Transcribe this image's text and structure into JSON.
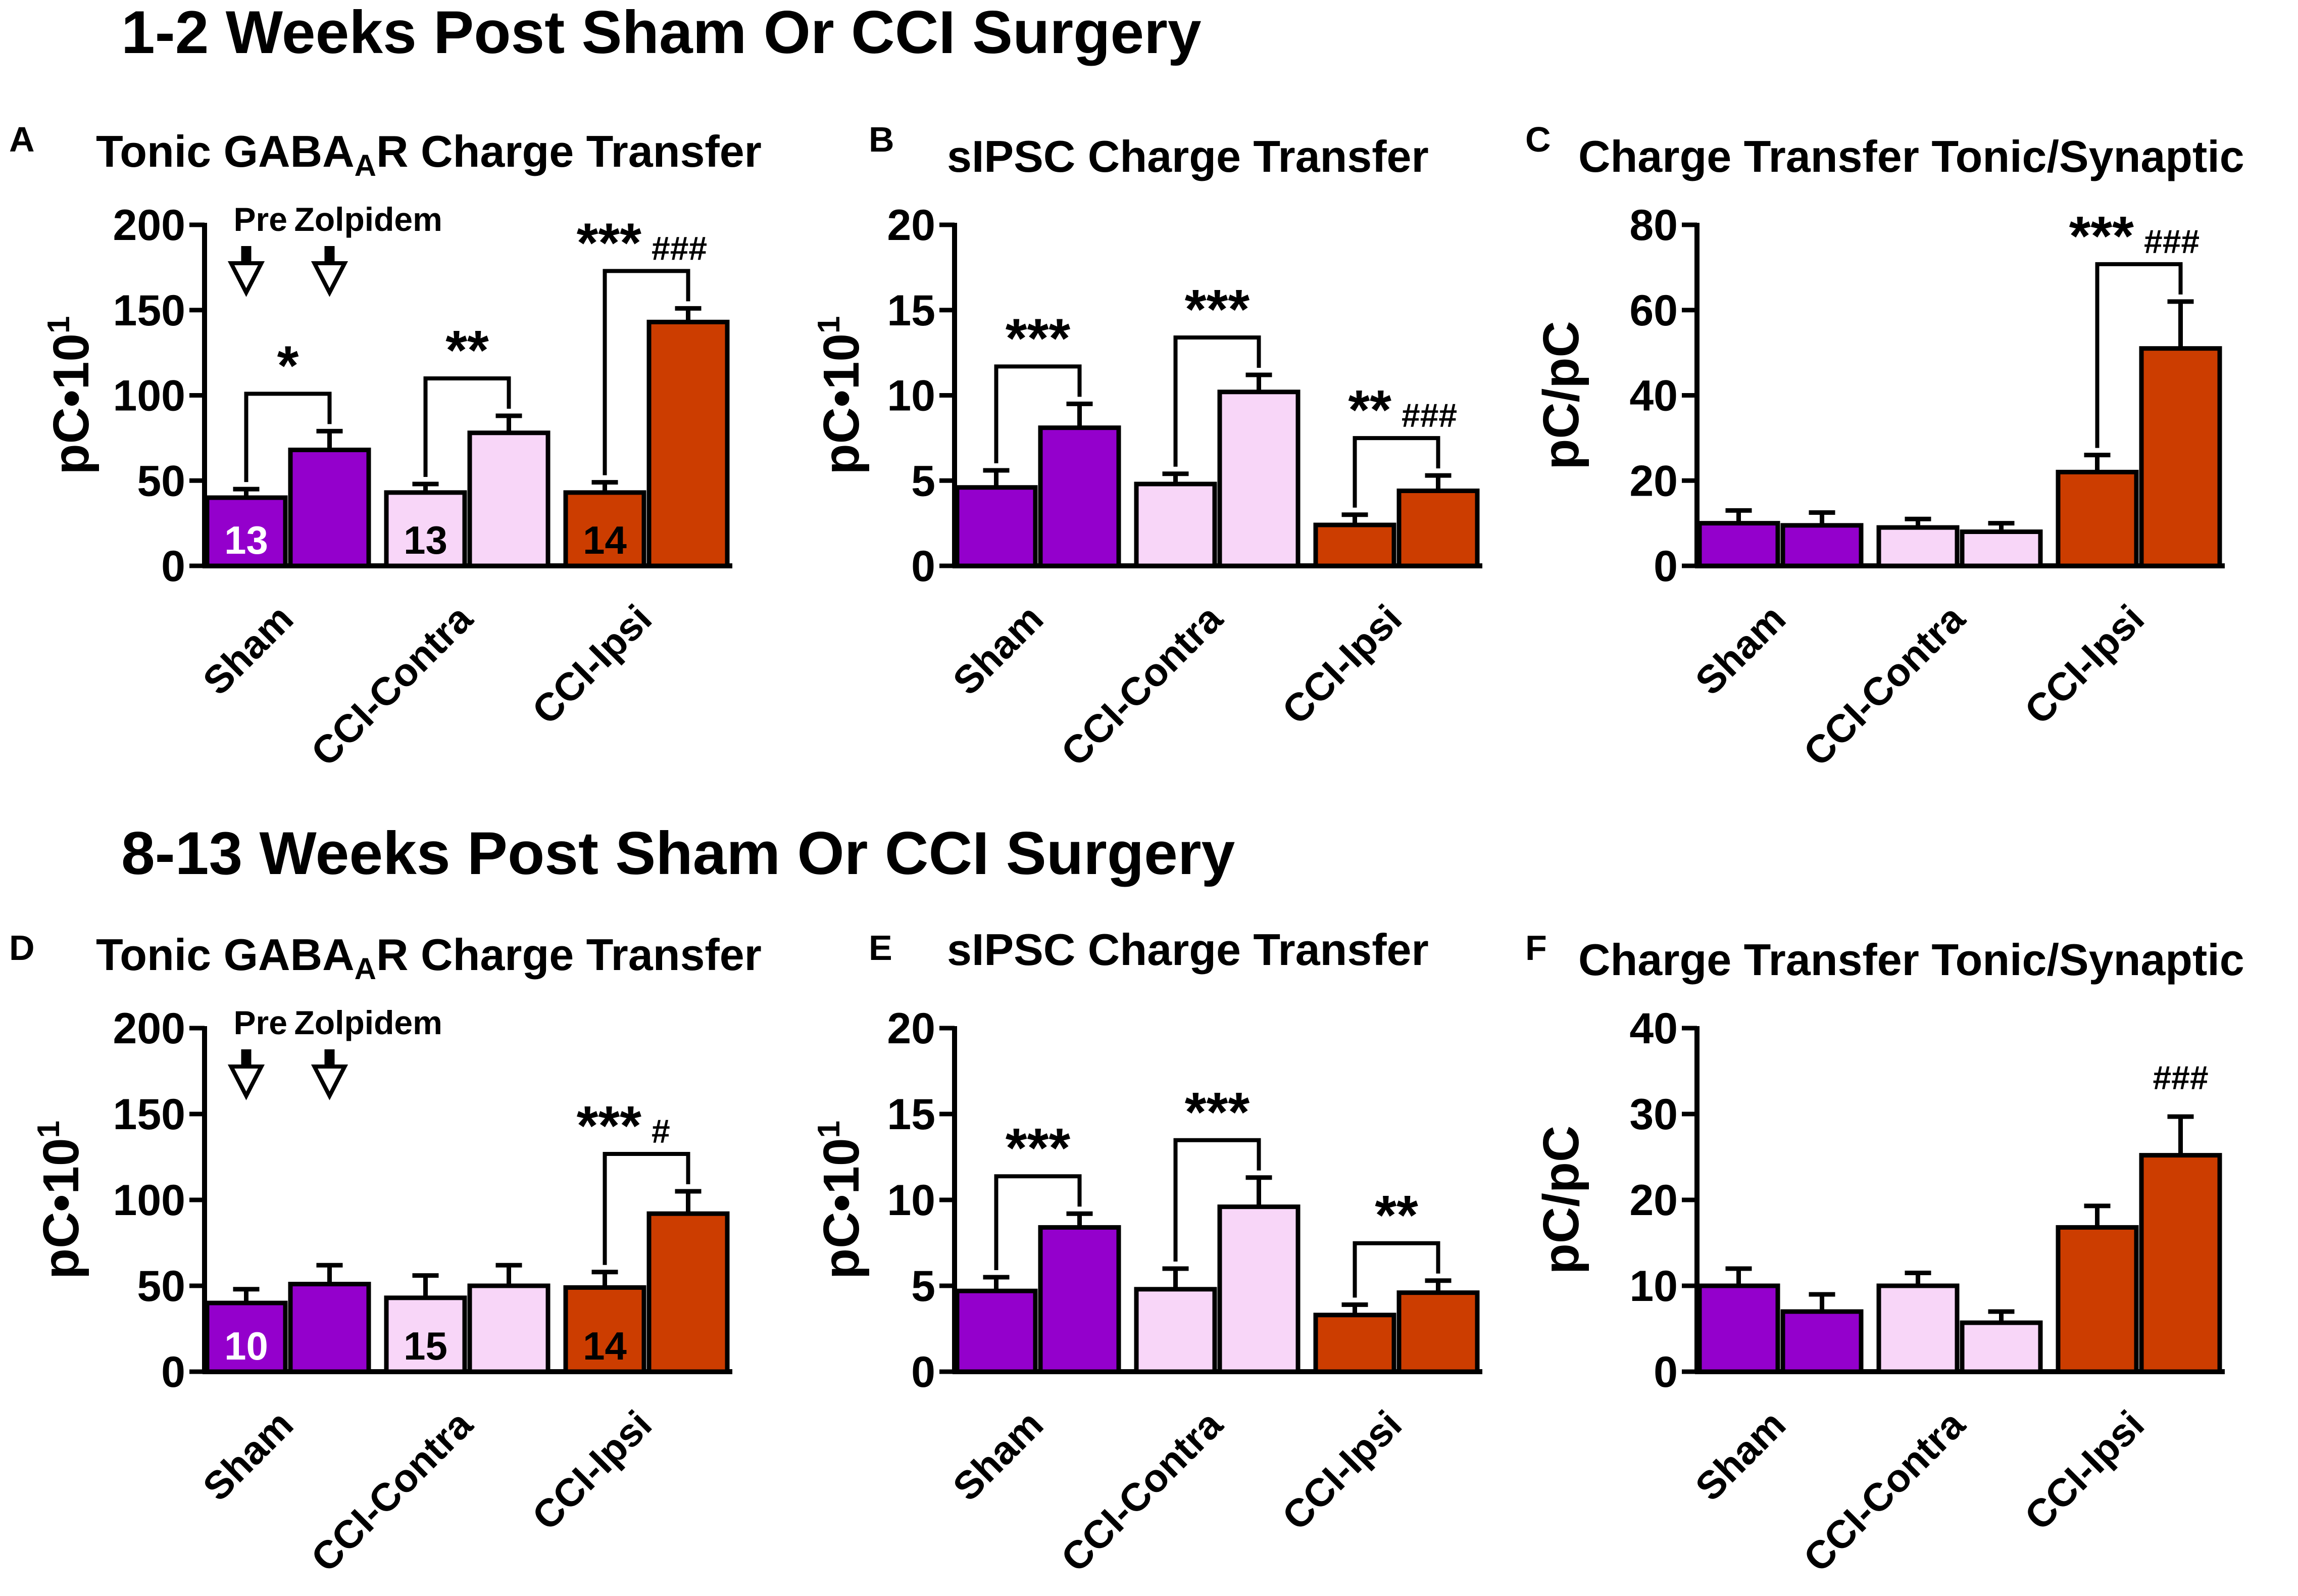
{
  "sections": [
    {
      "title": "1-2 Weeks Post Sham Or CCI Surgery"
    },
    {
      "title": "8-13 Weeks Post Sham Or CCI Surgery"
    }
  ],
  "colors": {
    "sham": "#9400cc",
    "cci_contra": "#f8d6f8",
    "cci_ipsi": "#cc3d00",
    "axis": "#000000",
    "n_label_light": "#ffffff",
    "n_label_dark": "#000000"
  },
  "chart_data": [
    {
      "panel": "A",
      "type": "bar",
      "title": "Tonic GABA",
      "title_sub": "A",
      "title_suffix": "R Charge Transfer",
      "ylabel": "pC•10",
      "ylabel_sup": "1",
      "ylim": [
        0,
        200
      ],
      "yticks": [
        "0",
        "50",
        "100",
        "150",
        "200"
      ],
      "categories": [
        "Sham",
        "CCI-Contra",
        "CCI-Ipsi"
      ],
      "condition_labels": [
        "Pre",
        "Zolpidem"
      ],
      "bars": [
        {
          "group": "Sham",
          "condition": "Pre",
          "value": 40,
          "error": 5,
          "n": "13"
        },
        {
          "group": "Sham",
          "condition": "Zolpidem",
          "value": 68,
          "error": 11
        },
        {
          "group": "CCI-Contra",
          "condition": "Pre",
          "value": 43,
          "error": 5,
          "n": "13"
        },
        {
          "group": "CCI-Contra",
          "condition": "Zolpidem",
          "value": 78,
          "error": 10
        },
        {
          "group": "CCI-Ipsi",
          "condition": "Pre",
          "value": 43,
          "error": 6,
          "n": "14"
        },
        {
          "group": "CCI-Ipsi",
          "condition": "Zolpidem",
          "value": 143,
          "error": 8
        }
      ],
      "annotations": [
        {
          "group": "Sham",
          "stars": "*",
          "hash": ""
        },
        {
          "group": "CCI-Contra",
          "stars": "**",
          "hash": ""
        },
        {
          "group": "CCI-Ipsi",
          "stars": "***",
          "hash": "###"
        }
      ]
    },
    {
      "panel": "B",
      "type": "bar",
      "title": "sIPSC Charge Transfer",
      "ylabel": "pC•10",
      "ylabel_sup": "1",
      "ylim": [
        0,
        20
      ],
      "yticks": [
        "0",
        "5",
        "10",
        "15",
        "20"
      ],
      "categories": [
        "Sham",
        "CCI-Contra",
        "CCI-Ipsi"
      ],
      "bars": [
        {
          "group": "Sham",
          "condition": "Pre",
          "value": 4.6,
          "error": 1.0
        },
        {
          "group": "Sham",
          "condition": "Zolpidem",
          "value": 8.1,
          "error": 1.4
        },
        {
          "group": "CCI-Contra",
          "condition": "Pre",
          "value": 4.8,
          "error": 0.6
        },
        {
          "group": "CCI-Contra",
          "condition": "Zolpidem",
          "value": 10.2,
          "error": 1.0
        },
        {
          "group": "CCI-Ipsi",
          "condition": "Pre",
          "value": 2.4,
          "error": 0.6
        },
        {
          "group": "CCI-Ipsi",
          "condition": "Zolpidem",
          "value": 4.4,
          "error": 0.9
        }
      ],
      "annotations": [
        {
          "group": "Sham",
          "stars": "***",
          "hash": ""
        },
        {
          "group": "CCI-Contra",
          "stars": "***",
          "hash": ""
        },
        {
          "group": "CCI-Ipsi",
          "stars": "**",
          "hash": "###"
        }
      ]
    },
    {
      "panel": "C",
      "type": "bar",
      "title": "Charge Transfer Tonic/Synaptic",
      "ylabel": "pC/pC",
      "ylim": [
        0,
        80
      ],
      "yticks": [
        "0",
        "20",
        "40",
        "60",
        "80"
      ],
      "categories": [
        "Sham",
        "CCI-Contra",
        "CCI-Ipsi"
      ],
      "bars": [
        {
          "group": "Sham",
          "condition": "Pre",
          "value": 10,
          "error": 3
        },
        {
          "group": "Sham",
          "condition": "Zolpidem",
          "value": 9.5,
          "error": 3
        },
        {
          "group": "CCI-Contra",
          "condition": "Pre",
          "value": 9,
          "error": 2
        },
        {
          "group": "CCI-Contra",
          "condition": "Zolpidem",
          "value": 8,
          "error": 2
        },
        {
          "group": "CCI-Ipsi",
          "condition": "Pre",
          "value": 22,
          "error": 4
        },
        {
          "group": "CCI-Ipsi",
          "condition": "Zolpidem",
          "value": 51,
          "error": 11
        }
      ],
      "annotations": [
        {
          "group": "CCI-Ipsi",
          "stars": "***",
          "hash": "###"
        }
      ]
    },
    {
      "panel": "D",
      "type": "bar",
      "title": "Tonic GABA",
      "title_sub": "A",
      "title_suffix": "R Charge Transfer",
      "ylabel": "pC•10",
      "ylabel_sup": "1",
      "ylim": [
        0,
        200
      ],
      "yticks": [
        "0",
        "50",
        "100",
        "150",
        "200"
      ],
      "categories": [
        "Sham",
        "CCI-Contra",
        "CCI-Ipsi"
      ],
      "condition_labels": [
        "Pre",
        "Zolpidem"
      ],
      "bars": [
        {
          "group": "Sham",
          "condition": "Pre",
          "value": 40,
          "error": 8,
          "n": "10"
        },
        {
          "group": "Sham",
          "condition": "Zolpidem",
          "value": 51,
          "error": 11
        },
        {
          "group": "CCI-Contra",
          "condition": "Pre",
          "value": 43,
          "error": 13,
          "n": "15"
        },
        {
          "group": "CCI-Contra",
          "condition": "Zolpidem",
          "value": 50,
          "error": 12
        },
        {
          "group": "CCI-Ipsi",
          "condition": "Pre",
          "value": 49,
          "error": 9,
          "n": "14"
        },
        {
          "group": "CCI-Ipsi",
          "condition": "Zolpidem",
          "value": 92,
          "error": 13
        }
      ],
      "annotations": [
        {
          "group": "CCI-Ipsi",
          "stars": "***",
          "hash": "#"
        }
      ]
    },
    {
      "panel": "E",
      "type": "bar",
      "title": "sIPSC Charge Transfer",
      "ylabel": "pC•10",
      "ylabel_sup": "1",
      "ylim": [
        0,
        20
      ],
      "yticks": [
        "0",
        "5",
        "10",
        "15",
        "20"
      ],
      "categories": [
        "Sham",
        "CCI-Contra",
        "CCI-Ipsi"
      ],
      "bars": [
        {
          "group": "Sham",
          "condition": "Pre",
          "value": 4.7,
          "error": 0.8
        },
        {
          "group": "Sham",
          "condition": "Zolpidem",
          "value": 8.4,
          "error": 0.8
        },
        {
          "group": "CCI-Contra",
          "condition": "Pre",
          "value": 4.8,
          "error": 1.2
        },
        {
          "group": "CCI-Contra",
          "condition": "Zolpidem",
          "value": 9.6,
          "error": 1.7
        },
        {
          "group": "CCI-Ipsi",
          "condition": "Pre",
          "value": 3.3,
          "error": 0.6
        },
        {
          "group": "CCI-Ipsi",
          "condition": "Zolpidem",
          "value": 4.6,
          "error": 0.7
        }
      ],
      "annotations": [
        {
          "group": "Sham",
          "stars": "***",
          "hash": ""
        },
        {
          "group": "CCI-Contra",
          "stars": "***",
          "hash": ""
        },
        {
          "group": "CCI-Ipsi",
          "stars": "**",
          "hash": ""
        }
      ]
    },
    {
      "panel": "F",
      "type": "bar",
      "title": "Charge Transfer Tonic/Synaptic",
      "ylabel": "pC/pC",
      "ylim": [
        0,
        40
      ],
      "yticks": [
        "0",
        "10",
        "20",
        "30",
        "40"
      ],
      "categories": [
        "Sham",
        "CCI-Contra",
        "CCI-Ipsi"
      ],
      "bars": [
        {
          "group": "Sham",
          "condition": "Pre",
          "value": 10,
          "error": 2
        },
        {
          "group": "Sham",
          "condition": "Zolpidem",
          "value": 7,
          "error": 2
        },
        {
          "group": "CCI-Contra",
          "condition": "Pre",
          "value": 10,
          "error": 1.5
        },
        {
          "group": "CCI-Contra",
          "condition": "Zolpidem",
          "value": 5.7,
          "error": 1.3
        },
        {
          "group": "CCI-Ipsi",
          "condition": "Pre",
          "value": 16.8,
          "error": 2.5
        },
        {
          "group": "CCI-Ipsi",
          "condition": "Zolpidem",
          "value": 25.2,
          "error": 4.5
        }
      ],
      "annotations": [
        {
          "group": "CCI-Ipsi",
          "stars": "",
          "hash": "###"
        }
      ]
    }
  ]
}
